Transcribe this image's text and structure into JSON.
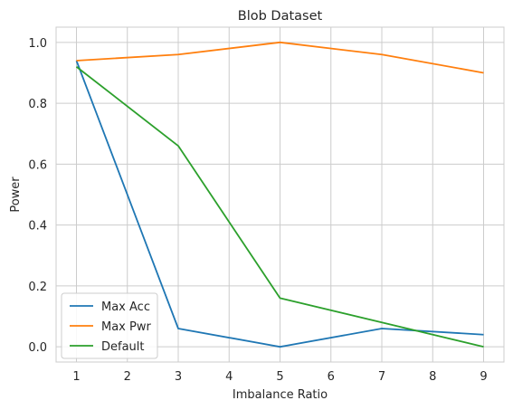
{
  "chart_data": {
    "type": "line",
    "title": "Blob Dataset",
    "xlabel": "Imbalance Ratio",
    "ylabel": "Power",
    "xlim": [
      0.6,
      9.4
    ],
    "ylim": [
      -0.05,
      1.05
    ],
    "xticks": [
      1,
      2,
      3,
      4,
      5,
      6,
      7,
      8,
      9
    ],
    "yticks": [
      0.0,
      0.2,
      0.4,
      0.6,
      0.8,
      1.0
    ],
    "ytick_labels": [
      "0.0",
      "0.2",
      "0.4",
      "0.6",
      "0.8",
      "1.0"
    ],
    "grid": true,
    "legend_position": "lower-left",
    "series": [
      {
        "name": "Max Acc",
        "color": "#1f77b4",
        "x": [
          1,
          3,
          5,
          7,
          9
        ],
        "y": [
          0.94,
          0.06,
          0.0,
          0.06,
          0.04
        ]
      },
      {
        "name": "Max Pwr",
        "color": "#ff7f0e",
        "x": [
          1,
          3,
          5,
          7,
          9
        ],
        "y": [
          0.94,
          0.96,
          1.0,
          0.96,
          0.9
        ]
      },
      {
        "name": "Default",
        "color": "#2ca02c",
        "x": [
          1,
          3,
          5,
          7,
          9
        ],
        "y": [
          0.92,
          0.66,
          0.16,
          0.08,
          0.0
        ]
      }
    ]
  }
}
